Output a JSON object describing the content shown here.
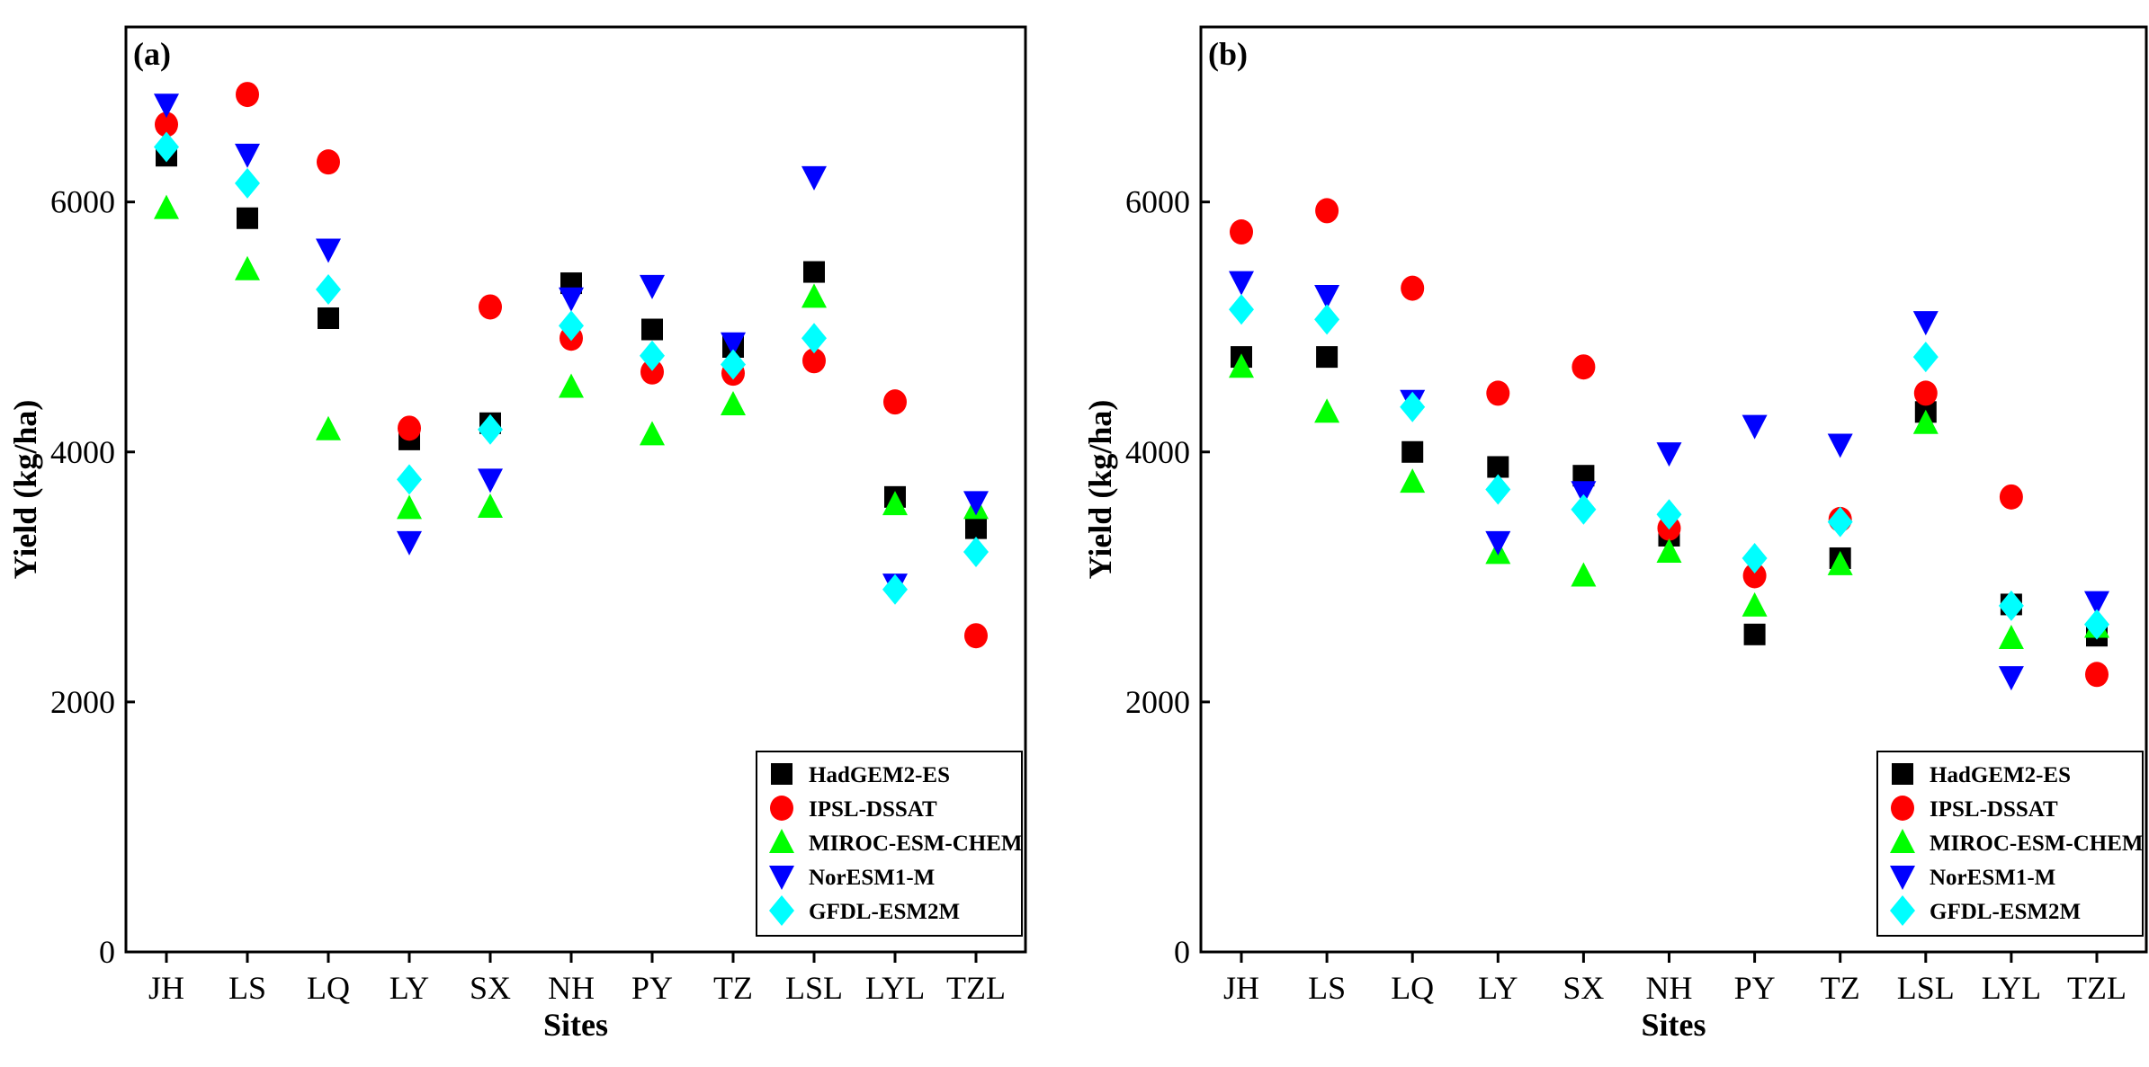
{
  "chart_data": [
    {
      "type": "scatter",
      "panel_label": "(a)",
      "xlabel": "Sites",
      "ylabel": "Yield (kg/ha)",
      "categories": [
        "JH",
        "LS",
        "LQ",
        "LY",
        "SX",
        "NH",
        "PY",
        "TZ",
        "LSL",
        "LYL",
        "TZL"
      ],
      "ylim": [
        0,
        7400
      ],
      "yticks": [
        "0",
        "2000",
        "4000",
        "6000"
      ],
      "legend_position": "bottom-right",
      "series": [
        {
          "name": "HadGEM2-ES",
          "marker": "square",
          "color": "#000000",
          "values": [
            6370,
            5870,
            5070,
            4100,
            4230,
            5350,
            4980,
            4840,
            5440,
            3640,
            3390
          ]
        },
        {
          "name": "IPSL-DSSAT",
          "marker": "circle",
          "color": "#ff0000",
          "values": [
            6620,
            6860,
            6320,
            4190,
            5160,
            4910,
            4640,
            4630,
            4730,
            4400,
            2530
          ]
        },
        {
          "name": "MIROC-ESM-CHEM",
          "marker": "triangle-up",
          "color": "#00ff00",
          "values": [
            5950,
            5460,
            4180,
            3550,
            3560,
            4520,
            4140,
            4380,
            5240,
            3580,
            3550
          ]
        },
        {
          "name": "NorESM1-M",
          "marker": "triangle-down",
          "color": "#0000ff",
          "values": [
            6780,
            6380,
            5620,
            3280,
            3780,
            5230,
            5330,
            4870,
            6200,
            2940,
            3600
          ]
        },
        {
          "name": "GFDL-ESM2M",
          "marker": "diamond",
          "color": "#00ffff",
          "values": [
            6440,
            6150,
            5300,
            3780,
            4180,
            5010,
            4770,
            4700,
            4910,
            2900,
            3200
          ]
        }
      ]
    },
    {
      "type": "scatter",
      "panel_label": "(b)",
      "xlabel": "Sites",
      "ylabel": "Yield (kg/ha)",
      "categories": [
        "JH",
        "LS",
        "LQ",
        "LY",
        "SX",
        "NH",
        "PY",
        "TZ",
        "LSL",
        "LYL",
        "TZL"
      ],
      "ylim": [
        0,
        7400
      ],
      "yticks": [
        "0",
        "2000",
        "4000",
        "6000"
      ],
      "legend_position": "bottom-right",
      "series": [
        {
          "name": "HadGEM2-ES",
          "marker": "square",
          "color": "#000000",
          "values": [
            4760,
            4760,
            4000,
            3880,
            3810,
            3330,
            2540,
            3150,
            4320,
            2780,
            2530
          ]
        },
        {
          "name": "IPSL-DSSAT",
          "marker": "circle",
          "color": "#ff0000",
          "values": [
            5760,
            5930,
            5310,
            4470,
            4680,
            3390,
            3010,
            3460,
            4470,
            3640,
            2220
          ]
        },
        {
          "name": "MIROC-ESM-CHEM",
          "marker": "triangle-up",
          "color": "#00ff00",
          "values": [
            4680,
            4320,
            3760,
            3190,
            3010,
            3200,
            2770,
            3100,
            4230,
            2510,
            2600
          ]
        },
        {
          "name": "NorESM1-M",
          "marker": "triangle-down",
          "color": "#0000ff",
          "values": [
            5360,
            5250,
            4410,
            3280,
            3680,
            3990,
            4210,
            4060,
            5040,
            2200,
            2800
          ]
        },
        {
          "name": "GFDL-ESM2M",
          "marker": "diamond",
          "color": "#00ffff",
          "values": [
            5140,
            5060,
            4360,
            3700,
            3540,
            3500,
            3150,
            3440,
            4760,
            2770,
            2620
          ]
        }
      ]
    }
  ]
}
